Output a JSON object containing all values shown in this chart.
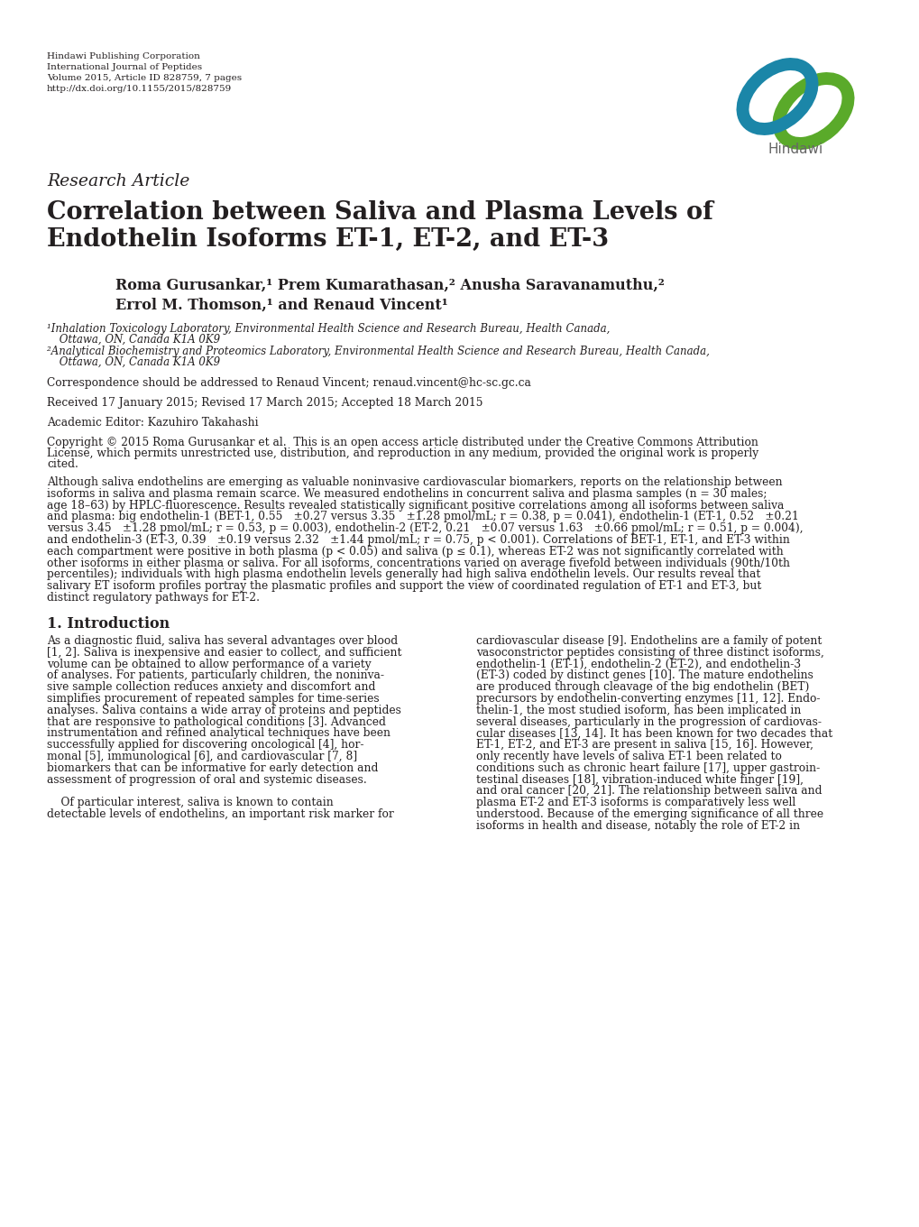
{
  "header_lines": [
    "Hindawi Publishing Corporation",
    "International Journal of Peptides",
    "Volume 2015, Article ID 828759, 7 pages",
    "http://dx.doi.org/10.1155/2015/828759"
  ],
  "research_article_label": "Research Article",
  "title_line1": "Correlation between Saliva and Plasma Levels of",
  "title_line2": "Endothelin Isoforms ET-1, ET-2, and ET-3",
  "authors_line1": "Roma Gurusankar,¹ Prem Kumarathasan,² Anusha Saravanamuthu,²",
  "authors_line2": "Errol M. Thomson,¹ and Renaud Vincent¹",
  "affil1": "¹Inhalation Toxicology Laboratory, Environmental Health Science and Research Bureau, Health Canada,",
  "affil1b": " Ottawa, ON, Canada K1A 0K9",
  "affil2": "²Analytical Biochemistry and Proteomics Laboratory, Environmental Health Science and Research Bureau, Health Canada,",
  "affil2b": " Ottawa, ON, Canada K1A 0K9",
  "correspondence": "Correspondence should be addressed to Renaud Vincent; renaud.vincent@hc-sc.gc.ca",
  "received": "Received 17 January 2015; Revised 17 March 2015; Accepted 18 March 2015",
  "editor": "Academic Editor: Kazuhiro Takahashi",
  "copyright_line1": "Copyright © 2015 Roma Gurusankar et al.  This is an open access article distributed under the Creative Commons Attribution",
  "copyright_line2": "License, which permits unrestricted use, distribution, and reproduction in any medium, provided the original work is properly",
  "copyright_line3": "cited.",
  "abstract_lines": [
    "Although saliva endothelins are emerging as valuable noninvasive cardiovascular biomarkers, reports on the relationship between",
    "isoforms in saliva and plasma remain scarce. We measured endothelins in concurrent saliva and plasma samples (n = 30 males;",
    "age 18–63) by HPLC-fluorescence. Results revealed statistically significant positive correlations among all isoforms between saliva",
    "and plasma: big endothelin-1 (BET-1, 0.55 ±0.27 versus 3.35 ±1.28 pmol/mL; r = 0.38, p = 0.041), endothelin-1 (ET-1, 0.52 ±0.21",
    "versus 3.45 ±1.28 pmol/mL; r = 0.53, p = 0.003), endothelin-2 (ET-2, 0.21 ±0.07 versus 1.63 ±0.66 pmol/mL; r = 0.51, p = 0.004),",
    "and endothelin-3 (ET-3, 0.39 ±0.19 versus 2.32 ±1.44 pmol/mL; r = 0.75, p < 0.001). Correlations of BET-1, ET-1, and ET-3 within",
    "each compartment were positive in both plasma (p < 0.05) and saliva (p ≤ 0.1), whereas ET-2 was not significantly correlated with",
    "other isoforms in either plasma or saliva. For all isoforms, concentrations varied on average fivefold between individuals (90th/10th",
    "percentiles); individuals with high plasma endothelin levels generally had high saliva endothelin levels. Our results reveal that",
    "salivary ET isoform profiles portray the plasmatic profiles and support the view of coordinated regulation of ET-1 and ET-3, but",
    "distinct regulatory pathways for ET-2."
  ],
  "section1_title": "1. Introduction",
  "section1_col1_lines": [
    "As a diagnostic fluid, saliva has several advantages over blood",
    "[1, 2]. Saliva is inexpensive and easier to collect, and sufficient",
    "volume can be obtained to allow performance of a variety",
    "of analyses. For patients, particularly children, the noninva-",
    "sive sample collection reduces anxiety and discomfort and",
    "simplifies procurement of repeated samples for time-series",
    "analyses. Saliva contains a wide array of proteins and peptides",
    "that are responsive to pathological conditions [3]. Advanced",
    "instrumentation and refined analytical techniques have been",
    "successfully applied for discovering oncological [4], hor-",
    "monal [5], immunological [6], and cardiovascular [7, 8]",
    "biomarkers that can be informative for early detection and",
    "assessment of progression of oral and systemic diseases.",
    "",
    "    Of particular interest, saliva is known to contain",
    "detectable levels of endothelins, an important risk marker for"
  ],
  "section1_col2_lines": [
    "cardiovascular disease [9]. Endothelins are a family of potent",
    "vasoconstrictor peptides consisting of three distinct isoforms,",
    "endothelin-1 (ET-1), endothelin-2 (ET-2), and endothelin-3",
    "(ET-3) coded by distinct genes [10]. The mature endothelins",
    "are produced through cleavage of the big endothelin (BET)",
    "precursors by endothelin-converting enzymes [11, 12]. Endo-",
    "thelin-1, the most studied isoform, has been implicated in",
    "several diseases, particularly in the progression of cardiovas-",
    "cular diseases [13, 14]. It has been known for two decades that",
    "ET-1, ET-2, and ET-3 are present in saliva [15, 16]. However,",
    "only recently have levels of saliva ET-1 been related to",
    "conditions such as chronic heart failure [17], upper gastroin-",
    "testinal diseases [18], vibration-induced white finger [19],",
    "and oral cancer [20, 21]. The relationship between saliva and",
    "plasma ET-2 and ET-3 isoforms is comparatively less well",
    "understood. Because of the emerging significance of all three",
    "isoforms in health and disease, notably the role of ET-2 in"
  ],
  "bg_color": "#ffffff",
  "text_color": "#231f20",
  "gray_color": "#555555",
  "header_fontsize": 7.5,
  "title_fontsize": 19.5,
  "research_article_fontsize": 13.5,
  "authors_fontsize": 11.5,
  "affil_fontsize": 8.5,
  "body_fontsize": 8.8,
  "section_title_fontsize": 11.5,
  "abstract_fontsize": 8.8,
  "hindawi_text_fontsize": 11
}
